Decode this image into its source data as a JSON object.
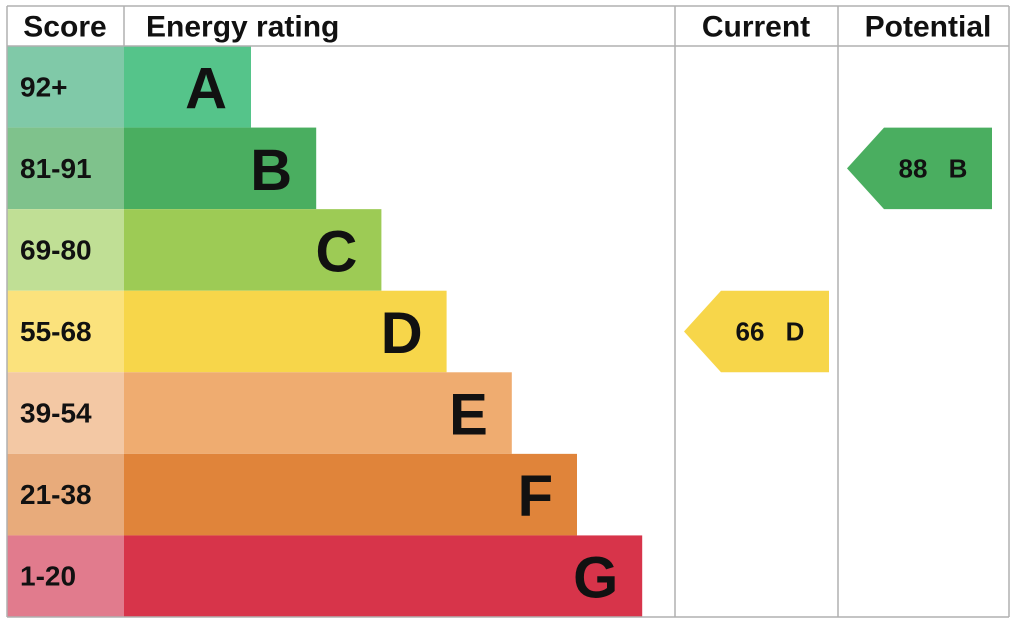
{
  "header": {
    "score": "Score",
    "rating": "Energy rating",
    "current": "Current",
    "potential": "Potential"
  },
  "bands": [
    {
      "score": "92+",
      "letter": "A",
      "color": "#55c48a",
      "light": "#80c9a8"
    },
    {
      "score": "81-91",
      "letter": "B",
      "color": "#4aae60",
      "light": "#7fc28c"
    },
    {
      "score": "69-80",
      "letter": "C",
      "color": "#9dcb55",
      "light": "#c0df95"
    },
    {
      "score": "55-68",
      "letter": "D",
      "color": "#f7d64a",
      "light": "#fbe27c"
    },
    {
      "score": "39-54",
      "letter": "E",
      "color": "#efac70",
      "light": "#f3c8a4"
    },
    {
      "score": "21-38",
      "letter": "F",
      "color": "#e0843a",
      "light": "#e8ab7b"
    },
    {
      "score": "1-20",
      "letter": "G",
      "color": "#d7344a",
      "light": "#e17b8d"
    }
  ],
  "current": {
    "score": 66,
    "rating": "D"
  },
  "potential": {
    "score": 88,
    "rating": "B"
  }
}
